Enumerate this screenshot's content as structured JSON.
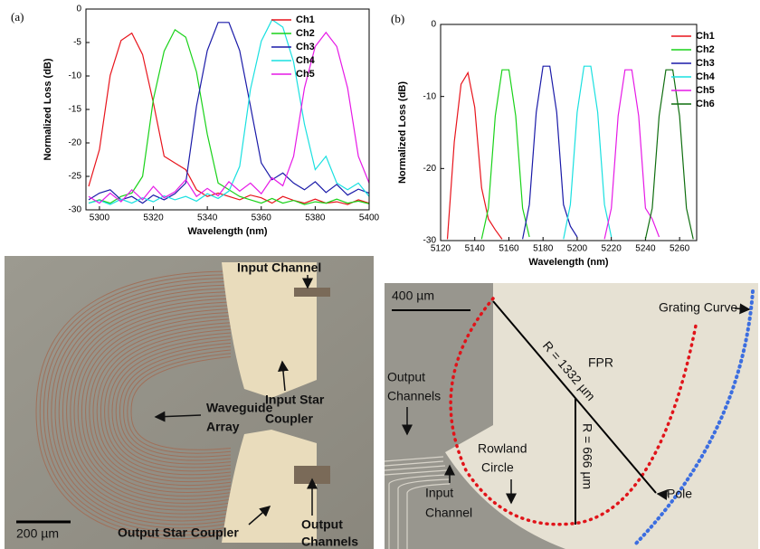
{
  "chart_data": [
    {
      "type": "line",
      "label": "(a)",
      "xlabel": "Wavelength (nm)",
      "ylabel": "Normalized Loss (dB)",
      "legend": "upper right",
      "xlim": [
        5295,
        5400
      ],
      "xticks": [
        5300,
        5320,
        5340,
        5360,
        5380,
        5400
      ],
      "ylim": [
        -30,
        0
      ],
      "yticks": [
        0,
        -5,
        -10,
        -15,
        -20,
        -25,
        -30
      ],
      "x": [
        5296,
        5300,
        5304,
        5308,
        5312,
        5316,
        5320,
        5324,
        5328,
        5332,
        5336,
        5340,
        5344,
        5348,
        5352,
        5356,
        5360,
        5364,
        5368,
        5372,
        5376,
        5380,
        5384,
        5388,
        5392,
        5396,
        5400
      ],
      "series": [
        {
          "name": "Ch1",
          "color": "#e8141c",
          "values": [
            -26.5,
            -21,
            -9.9,
            -4.7,
            -3.6,
            -6.8,
            -14,
            -22,
            -23,
            -24,
            -27,
            -28,
            -27.5,
            -28,
            -28.5,
            -27.8,
            -28.2,
            -29,
            -28,
            -28.6,
            -29,
            -28.4,
            -29,
            -28.8,
            -29.2,
            -28.5,
            -29
          ]
        },
        {
          "name": "Ch2",
          "color": "#19d219",
          "values": [
            -29,
            -28.5,
            -29,
            -28,
            -27.5,
            -25,
            -13.5,
            -6.3,
            -3.1,
            -4.2,
            -9.4,
            -18.7,
            -26,
            -27,
            -28,
            -28.5,
            -29,
            -28.3,
            -29,
            -28.6,
            -29.2,
            -28.8,
            -29,
            -28.4,
            -29,
            -28.7,
            -29.1
          ]
        },
        {
          "name": "Ch3",
          "color": "#1a1aa8",
          "values": [
            -28.5,
            -27.5,
            -27,
            -28.5,
            -28,
            -29,
            -27.8,
            -28.5,
            -27.6,
            -26,
            -14.5,
            -6.2,
            -2,
            -2,
            -6.2,
            -14.5,
            -23,
            -25.5,
            -24.5,
            -26,
            -27,
            -25.8,
            -27.4,
            -26.2,
            -27.8,
            -26.9,
            -27.5
          ]
        },
        {
          "name": "Ch4",
          "color": "#19e0e0",
          "values": [
            -29,
            -28.6,
            -29.2,
            -28.4,
            -29,
            -28.2,
            -28.8,
            -27.9,
            -28.5,
            -28,
            -28.7,
            -27.6,
            -28.3,
            -27.2,
            -23.5,
            -12,
            -4.8,
            -1.6,
            -2.7,
            -7.9,
            -17.2,
            -24,
            -22,
            -26,
            -27,
            -26,
            -28
          ]
        },
        {
          "name": "Ch5",
          "color": "#e619e6",
          "values": [
            -28,
            -29,
            -27.5,
            -28.8,
            -27,
            -28.5,
            -26.5,
            -28.2,
            -27.3,
            -25.5,
            -28,
            -26.8,
            -27.9,
            -25.8,
            -27.2,
            -26,
            -27.6,
            -25.2,
            -26.4,
            -22,
            -11.8,
            -5.6,
            -3.5,
            -5.6,
            -11.8,
            -22,
            -26
          ]
        }
      ]
    },
    {
      "type": "line",
      "label": "(b)",
      "xlabel": "Wavelength (nm)",
      "ylabel": "Normalized Loss (dB)",
      "legend": "upper right",
      "xlim": [
        5120,
        5270
      ],
      "xticks": [
        5120,
        5140,
        5160,
        5180,
        5200,
        5220,
        5240,
        5260
      ],
      "ylim": [
        -30,
        0
      ],
      "yticks": [
        0,
        -10,
        -20,
        -30
      ],
      "x": [
        5120,
        5124,
        5128,
        5132,
        5136,
        5140,
        5144,
        5148,
        5152,
        5156,
        5160,
        5164,
        5168,
        5172,
        5176,
        5180,
        5184,
        5188,
        5192,
        5196,
        5200,
        5204,
        5208,
        5212,
        5216,
        5220,
        5224,
        5228,
        5232,
        5236,
        5240,
        5244,
        5248,
        5252,
        5256,
        5260,
        5264,
        5268
      ],
      "series": [
        {
          "name": "Ch1",
          "color": "#e8141c",
          "values": [
            null,
            -29.8,
            -16.3,
            -8.3,
            -6.7,
            -11.5,
            -22.7,
            -27,
            -28.5,
            -29.8,
            null,
            null,
            null,
            null,
            null,
            null,
            null,
            null,
            null,
            null,
            null,
            null,
            null,
            null,
            null,
            null,
            null,
            null,
            null,
            null,
            null,
            null,
            null,
            null,
            null,
            null,
            null,
            null
          ]
        },
        {
          "name": "Ch2",
          "color": "#19d219",
          "values": [
            null,
            null,
            null,
            null,
            null,
            null,
            -29.8,
            -25.5,
            -12.7,
            -6.3,
            -6.3,
            -12.7,
            -25.5,
            -29.5,
            null,
            null,
            null,
            null,
            null,
            null,
            null,
            null,
            null,
            null,
            null,
            null,
            null,
            null,
            null,
            null,
            null,
            null,
            null,
            null,
            null,
            null,
            null,
            null
          ]
        },
        {
          "name": "Ch3",
          "color": "#1a1aa8",
          "values": [
            null,
            null,
            null,
            null,
            null,
            null,
            null,
            null,
            null,
            null,
            null,
            null,
            -29.8,
            -25,
            -12.2,
            -5.8,
            -5.8,
            -12.2,
            -25,
            -28,
            -29.5,
            null,
            null,
            null,
            null,
            null,
            null,
            null,
            null,
            null,
            null,
            null,
            null,
            null,
            null,
            null,
            null,
            null
          ]
        },
        {
          "name": "Ch4",
          "color": "#19e0e0",
          "values": [
            null,
            null,
            null,
            null,
            null,
            null,
            null,
            null,
            null,
            null,
            null,
            null,
            null,
            null,
            null,
            null,
            null,
            null,
            -29.8,
            -25,
            -12.2,
            -5.8,
            -5.8,
            -12.2,
            -25,
            -29.5,
            null,
            null,
            null,
            null,
            null,
            null,
            null,
            null,
            null,
            null,
            null,
            null
          ]
        },
        {
          "name": "Ch5",
          "color": "#e619e6",
          "values": [
            null,
            null,
            null,
            null,
            null,
            null,
            null,
            null,
            null,
            null,
            null,
            null,
            null,
            null,
            null,
            null,
            null,
            null,
            null,
            null,
            null,
            null,
            null,
            null,
            -29.8,
            -25.5,
            -12.7,
            -6.3,
            -6.3,
            -12.7,
            -25.5,
            -27,
            -29.5,
            null,
            null,
            null,
            null,
            null
          ]
        },
        {
          "name": "Ch6",
          "color": "#0f6e0f",
          "values": [
            null,
            null,
            null,
            null,
            null,
            null,
            null,
            null,
            null,
            null,
            null,
            null,
            null,
            null,
            null,
            null,
            null,
            null,
            null,
            null,
            null,
            null,
            null,
            null,
            null,
            null,
            null,
            null,
            null,
            null,
            -29.8,
            -25.5,
            -12.7,
            -6.3,
            -6.3,
            -12.7,
            -25.5,
            -29.8
          ]
        }
      ]
    }
  ],
  "micrographs": [
    {
      "scale_bar": "200 µm",
      "labels": [
        [
          "Input Channel"
        ],
        [
          "Waveguide",
          "Array"
        ],
        [
          "Input Star",
          "Coupler"
        ],
        [
          "Output Star Coupler"
        ],
        [
          "Output",
          "Channels"
        ]
      ]
    },
    {
      "scale_bar": "400 µm",
      "labels": [
        [
          "Grating Curve"
        ],
        [
          "FPR"
        ],
        [
          "R = 1332 µm"
        ],
        [
          "R = 666 µm"
        ],
        [
          "Output",
          "Channels"
        ],
        [
          "Rowland",
          "Circle"
        ],
        [
          "Input",
          "Channel"
        ],
        [
          "Pole"
        ]
      ]
    }
  ]
}
